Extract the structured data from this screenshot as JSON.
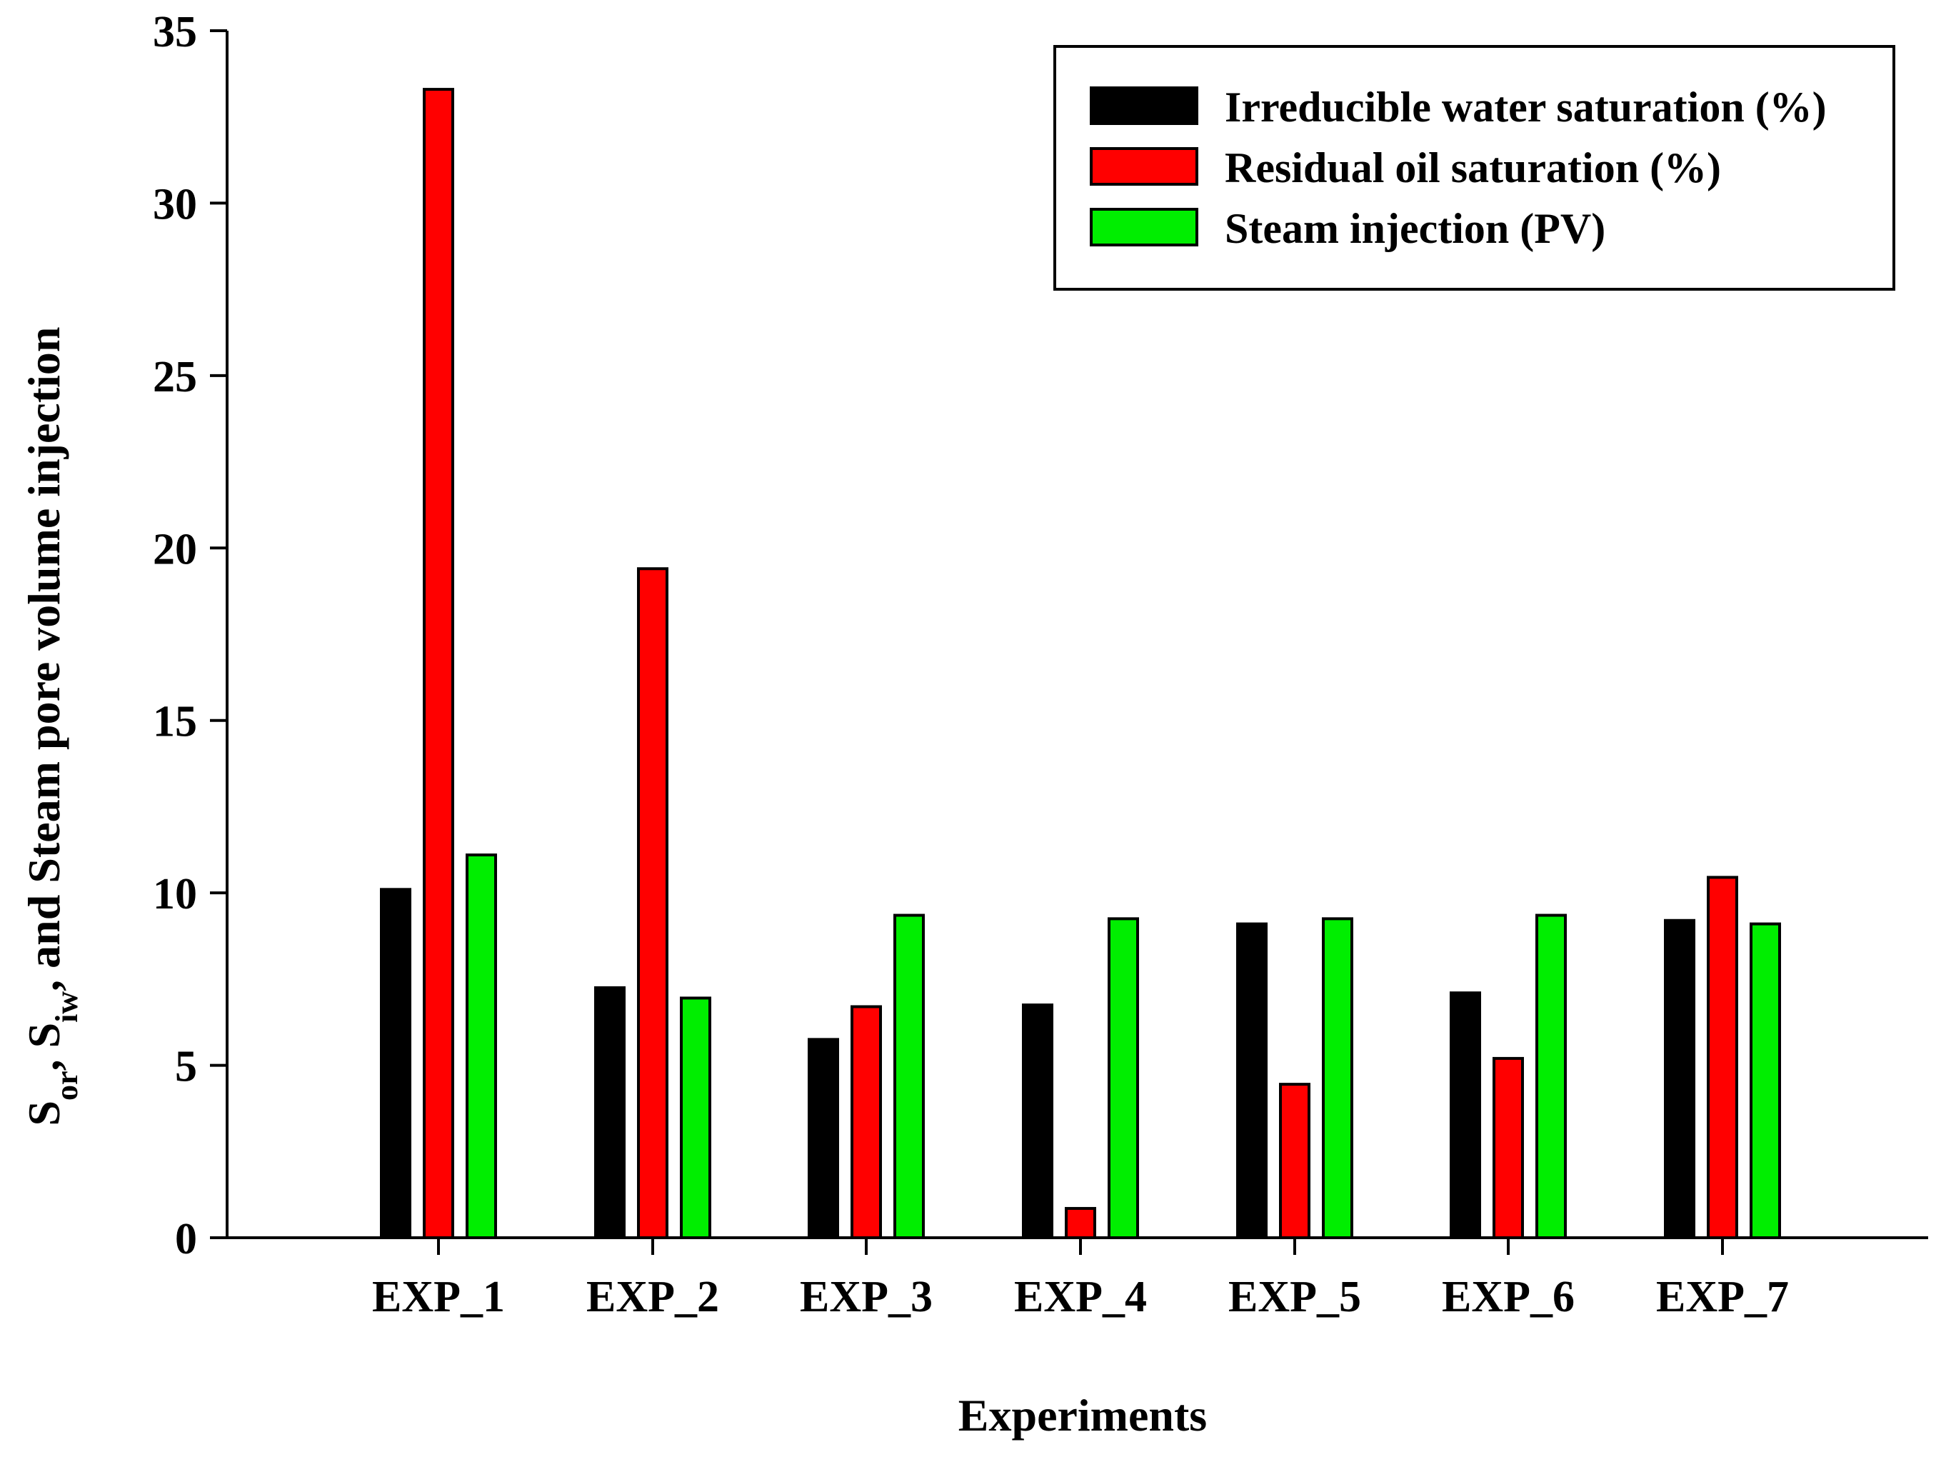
{
  "chart_data": {
    "type": "bar",
    "title": "",
    "xlabel": "Experiments",
    "ylabel_parts": [
      {
        "text": "S",
        "sub": false
      },
      {
        "text": "or",
        "sub": true
      },
      {
        "text": ", S",
        "sub": false
      },
      {
        "text": "iw",
        "sub": true
      },
      {
        "text": ", and Steam pore volume injection",
        "sub": false
      }
    ],
    "ylim": [
      0,
      35
    ],
    "yticks": [
      0,
      5,
      10,
      15,
      20,
      25,
      30,
      35
    ],
    "grid": false,
    "legend_position": "top-right",
    "categories": [
      "EXP_1",
      "EXP_2",
      "EXP_3",
      "EXP_4",
      "EXP_5",
      "EXP_6",
      "EXP_7"
    ],
    "series": [
      {
        "name": "Irreducible water saturation (%)",
        "color": "#000000",
        "values": [
          10.1,
          7.25,
          5.75,
          6.75,
          9.1,
          7.1,
          9.2
        ]
      },
      {
        "name": "Residual oil saturation (%)",
        "color": "#ff0000",
        "values": [
          33.3,
          19.4,
          6.7,
          0.85,
          4.45,
          5.2,
          10.45
        ]
      },
      {
        "name": "Steam injection (PV)",
        "color": "#00ee00",
        "values": [
          11.1,
          6.95,
          9.35,
          9.25,
          9.25,
          9.35,
          9.1
        ]
      }
    ]
  }
}
